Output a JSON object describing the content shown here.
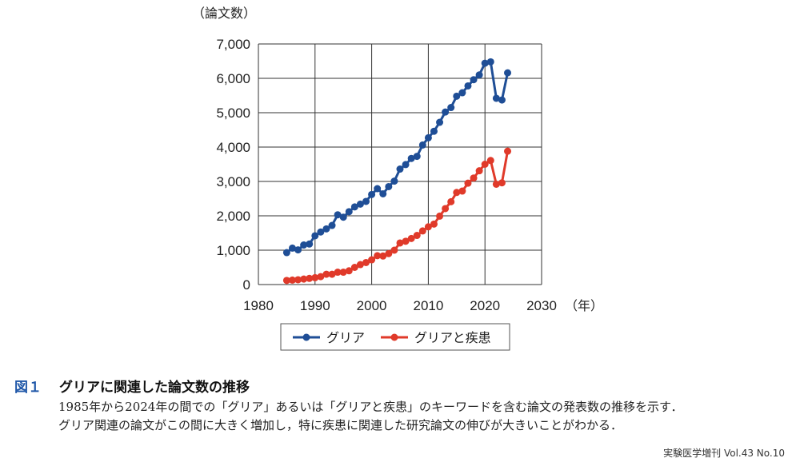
{
  "chart_data": {
    "type": "line",
    "ylabel": "（論文数）",
    "xlabel": "（年）",
    "xlim": [
      1980,
      2030
    ],
    "ylim": [
      0,
      7000
    ],
    "grid": true,
    "legend_placement": "bottom-center",
    "x_ticks": [
      1980,
      1990,
      2000,
      2010,
      2020,
      2030
    ],
    "x_tick_labels": [
      "1980",
      "1990",
      "2000",
      "2010",
      "2020",
      "2030"
    ],
    "y_ticks": [
      0,
      1000,
      2000,
      3000,
      4000,
      5000,
      6000,
      7000
    ],
    "y_tick_labels": [
      "0",
      "1,000",
      "2,000",
      "3,000",
      "4,000",
      "5,000",
      "6,000",
      "7,000"
    ],
    "x": [
      1985,
      1986,
      1987,
      1988,
      1989,
      1990,
      1991,
      1992,
      1993,
      1994,
      1995,
      1996,
      1997,
      1998,
      1999,
      2000,
      2001,
      2002,
      2003,
      2004,
      2005,
      2006,
      2007,
      2008,
      2009,
      2010,
      2011,
      2012,
      2013,
      2014,
      2015,
      2016,
      2017,
      2018,
      2019,
      2020,
      2021,
      2022,
      2023,
      2024
    ],
    "series": [
      {
        "name": "グリア",
        "color": "#1f4e96",
        "values": [
          930,
          1060,
          1010,
          1150,
          1180,
          1420,
          1530,
          1620,
          1720,
          2030,
          1960,
          2120,
          2260,
          2340,
          2420,
          2620,
          2790,
          2640,
          2850,
          3010,
          3360,
          3490,
          3670,
          3730,
          4060,
          4270,
          4460,
          4720,
          5020,
          5150,
          5480,
          5580,
          5780,
          5960,
          6100,
          6440,
          6480,
          5420,
          5370,
          6160
        ]
      },
      {
        "name": "グリアと疾患",
        "color": "#e03a2a",
        "values": [
          120,
          130,
          140,
          160,
          180,
          200,
          230,
          300,
          300,
          360,
          360,
          400,
          500,
          580,
          640,
          720,
          840,
          830,
          900,
          1000,
          1210,
          1260,
          1340,
          1430,
          1560,
          1680,
          1760,
          1990,
          2210,
          2410,
          2680,
          2720,
          2950,
          3100,
          3310,
          3500,
          3610,
          2920,
          2960,
          3880
        ]
      }
    ]
  },
  "caption": {
    "label": "図１",
    "title": "グリアに関連した論文数の推移",
    "line1": "1985年から2024年の間での「グリア」あるいは「グリアと疾患」のキーワードを含む論文の発表数の推移を示す．",
    "line2": "グリア関連の論文がこの間に大きく増加し，特に疾患に関連した研究論文の伸びが大きいことがわかる．"
  },
  "source": "実験医学増刊 Vol.43 No.10"
}
